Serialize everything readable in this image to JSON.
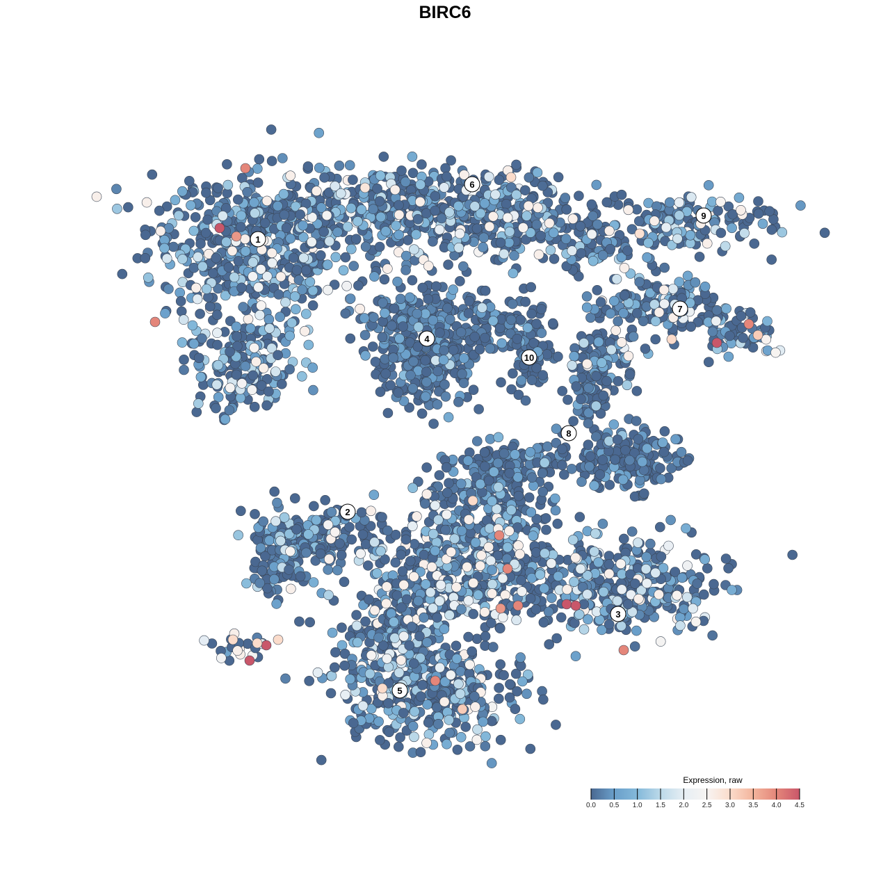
{
  "chart_data": {
    "type": "scatter",
    "title": "BIRC6",
    "xlabel": "",
    "ylabel": "",
    "grid": false,
    "legend": {
      "title": "Expression, raw",
      "placement": "bottom-right",
      "ticks": [
        "0.0",
        "0.5",
        "1.0",
        "1.5",
        "2.0",
        "2.5",
        "3.0",
        "3.5",
        "4.0",
        "4.5"
      ],
      "range": [
        0,
        4.5
      ],
      "colors": [
        "#4a6891",
        "#6a9fca",
        "#84b9da",
        "#bcd9e9",
        "#e6eef4",
        "#f7f4f2",
        "#fbdccb",
        "#f3b49c",
        "#e4867a",
        "#c9576a"
      ]
    },
    "cluster_labels": [
      {
        "label": "1",
        "x": -26.9,
        "y": 29.6
      },
      {
        "label": "6",
        "x": 3.9,
        "y": 37.5
      },
      {
        "label": "9",
        "x": 37.2,
        "y": 33.0
      },
      {
        "label": "7",
        "x": 33.8,
        "y": 19.6
      },
      {
        "label": "4",
        "x": -2.6,
        "y": 15.3
      },
      {
        "label": "10",
        "x": 12.1,
        "y": 12.6
      },
      {
        "label": "8",
        "x": 17.8,
        "y": 1.7
      },
      {
        "label": "2",
        "x": -14.0,
        "y": -9.6
      },
      {
        "label": "3",
        "x": 24.9,
        "y": -24.3
      },
      {
        "label": "5",
        "x": -6.5,
        "y": -35.3
      }
    ],
    "point_clouds": [
      {
        "x": -27,
        "y": 28,
        "sx": 14,
        "sy": 10,
        "n": 520,
        "mean_expr": 0.9
      },
      {
        "x": -29,
        "y": 11,
        "sx": 8,
        "sy": 6,
        "n": 170,
        "mean_expr": 0.8
      },
      {
        "x": -5,
        "y": 34,
        "sx": 17,
        "sy": 5,
        "n": 460,
        "mean_expr": 0.9
      },
      {
        "x": 12,
        "y": 32,
        "sx": 9,
        "sy": 5,
        "n": 150,
        "mean_expr": 0.8
      },
      {
        "x": 22,
        "y": 29,
        "sx": 5,
        "sy": 4,
        "n": 60,
        "mean_expr": 0.6
      },
      {
        "x": 35,
        "y": 32,
        "sx": 12,
        "sy": 4,
        "n": 150,
        "mean_expr": 0.9
      },
      {
        "x": 30,
        "y": 20,
        "sx": 9,
        "sy": 4,
        "n": 160,
        "mean_expr": 0.7
      },
      {
        "x": 42,
        "y": 16,
        "sx": 6,
        "sy": 3,
        "n": 60,
        "mean_expr": 1.0
      },
      {
        "x": -3,
        "y": 15,
        "sx": 7,
        "sy": 8,
        "n": 420,
        "mean_expr": 0.3
      },
      {
        "x": 7,
        "y": 18,
        "sx": 6,
        "sy": 3,
        "n": 80,
        "mean_expr": 0.3
      },
      {
        "x": 12,
        "y": 13,
        "sx": 3,
        "sy": 5,
        "n": 60,
        "mean_expr": 0.3
      },
      {
        "x": 23,
        "y": 12,
        "sx": 5,
        "sy": 4,
        "n": 80,
        "mean_expr": 0.8
      },
      {
        "x": 21,
        "y": 7,
        "sx": 3,
        "sy": 5,
        "n": 60,
        "mean_expr": 0.3
      },
      {
        "x": 26,
        "y": -2,
        "sx": 8,
        "sy": 4,
        "n": 180,
        "mean_expr": 0.3
      },
      {
        "x": 10,
        "y": -2,
        "sx": 7,
        "sy": 3,
        "n": 80,
        "mean_expr": 0.3
      },
      {
        "x": 6,
        "y": -7,
        "sx": 8,
        "sy": 5,
        "n": 200,
        "mean_expr": 0.4
      },
      {
        "x": -18,
        "y": -13,
        "sx": 8,
        "sy": 4,
        "n": 150,
        "mean_expr": 0.6
      },
      {
        "x": -23,
        "y": -17,
        "sx": 5,
        "sy": 4,
        "n": 80,
        "mean_expr": 0.5
      },
      {
        "x": 3,
        "y": -18,
        "sx": 12,
        "sy": 8,
        "n": 460,
        "mean_expr": 1.3
      },
      {
        "x": 25,
        "y": -20,
        "sx": 12,
        "sy": 6,
        "n": 350,
        "mean_expr": 1.0
      },
      {
        "x": -3,
        "y": -35,
        "sx": 12,
        "sy": 7,
        "n": 400,
        "mean_expr": 1.0
      },
      {
        "x": -8,
        "y": -27,
        "sx": 7,
        "sy": 5,
        "n": 120,
        "mean_expr": 1.1
      },
      {
        "x": -29,
        "y": -29,
        "sx": 4,
        "sy": 2,
        "n": 20,
        "mean_expr": 2.5
      }
    ],
    "high_points": [
      {
        "x": -32.4,
        "y": 31.2,
        "expr": 4.5
      },
      {
        "x": -28.7,
        "y": 39.8,
        "expr": 4.0
      },
      {
        "x": -30.0,
        "y": 30.0,
        "expr": 3.8
      },
      {
        "x": -41.7,
        "y": 17.7,
        "expr": 4.0
      },
      {
        "x": 39.1,
        "y": 14.7,
        "expr": 4.5
      },
      {
        "x": 43.7,
        "y": 17.4,
        "expr": 4.0
      },
      {
        "x": 7.8,
        "y": -13.0,
        "expr": 4.0
      },
      {
        "x": 9.0,
        "y": -17.8,
        "expr": 4.0
      },
      {
        "x": 17.5,
        "y": -22.9,
        "expr": 4.5
      },
      {
        "x": 18.8,
        "y": -23.1,
        "expr": 4.5
      },
      {
        "x": 10.5,
        "y": -23.1,
        "expr": 4.0
      },
      {
        "x": -1.4,
        "y": -33.9,
        "expr": 4.0
      },
      {
        "x": 25.7,
        "y": -29.5,
        "expr": 4.0
      },
      {
        "x": -25.7,
        "y": -28.8,
        "expr": 4.5
      },
      {
        "x": -28.1,
        "y": -31.0,
        "expr": 4.5
      },
      {
        "x": 8.0,
        "y": -23.5,
        "expr": 3.8
      },
      {
        "x": -24.0,
        "y": -28.0,
        "expr": 3.0
      },
      {
        "x": -27.0,
        "y": -28.5,
        "expr": 3.0
      },
      {
        "x": -30.5,
        "y": -28.0,
        "expr": 3.0
      },
      {
        "x": 32.6,
        "y": 15.2,
        "expr": 3.0
      },
      {
        "x": 45.0,
        "y": 15.8,
        "expr": 3.2
      },
      {
        "x": -11.5,
        "y": 37.0,
        "expr": 2.8
      },
      {
        "x": 9.5,
        "y": 38.5,
        "expr": 3.0
      },
      {
        "x": 28.0,
        "y": 30.4,
        "expr": 2.9
      },
      {
        "x": 4.0,
        "y": -8.0,
        "expr": 3.0
      },
      {
        "x": -9.0,
        "y": -35.0,
        "expr": 3.0
      },
      {
        "x": 2.5,
        "y": -38.0,
        "expr": 3.2
      }
    ]
  }
}
